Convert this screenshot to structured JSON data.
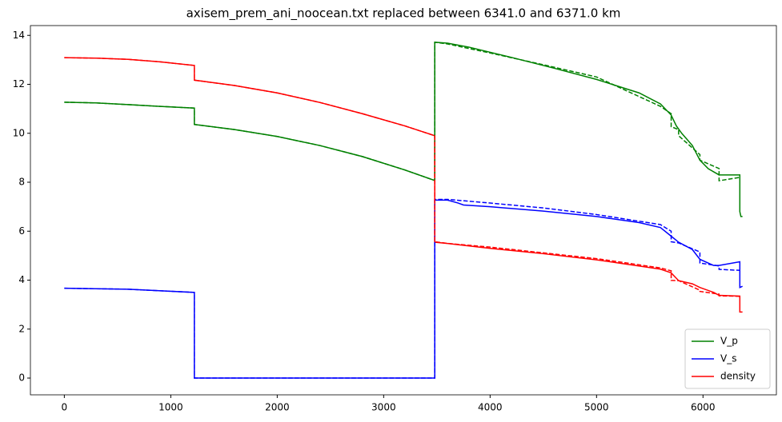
{
  "chart_data": {
    "type": "line",
    "title": "axisem_prem_ani_noocean.txt replaced between 6341.0 and 6371.0 km",
    "xlim": [
      -318.55,
      6689.55
    ],
    "xticks": [
      0,
      1000,
      2000,
      3000,
      4000,
      5000,
      6000
    ],
    "ylim": [
      -0.685,
      14.4
    ],
    "yticks": [
      0,
      2,
      4,
      6,
      8,
      10,
      12,
      14
    ],
    "legend": "lower right",
    "series": [
      {
        "name": "V_p",
        "color": "#008000",
        "style": "solid",
        "x": [
          0,
          300,
          600,
          900,
          1221.5,
          1221.5,
          1600,
          2000,
          2400,
          2800,
          3200,
          3480,
          3480,
          3600,
          3800,
          4200,
          4600,
          5000,
          5400,
          5600,
          5700,
          5750,
          5800,
          5900,
          5971,
          6050,
          6151,
          6346,
          6346,
          6356,
          6371
        ],
        "values": [
          11.27,
          11.24,
          11.17,
          11.1,
          11.03,
          10.36,
          10.15,
          9.87,
          9.5,
          9.05,
          8.5,
          8.07,
          13.72,
          13.68,
          13.52,
          13.1,
          12.66,
          12.2,
          11.65,
          11.2,
          10.75,
          10.3,
          10.0,
          9.5,
          8.9,
          8.55,
          8.3,
          8.3,
          6.8,
          6.6,
          6.6
        ]
      },
      {
        "name": "V_s",
        "color": "#0000ff",
        "style": "solid",
        "x": [
          0,
          600,
          1221.5,
          1221.5,
          3480,
          3480,
          3600,
          3700,
          3750,
          4000,
          4500,
          5000,
          5400,
          5600,
          5700,
          5771,
          5900,
          5971,
          6100,
          6151,
          6346,
          6346,
          6371
        ],
        "values": [
          3.67,
          3.63,
          3.5,
          0,
          0,
          7.27,
          7.27,
          7.15,
          7.07,
          7.0,
          6.82,
          6.6,
          6.35,
          6.15,
          5.8,
          5.55,
          5.25,
          4.85,
          4.6,
          4.6,
          4.75,
          3.7,
          3.75
        ]
      },
      {
        "name": "density",
        "color": "#ff0000",
        "style": "solid",
        "x": [
          0,
          300,
          600,
          900,
          1221.5,
          1221.5,
          1600,
          2000,
          2400,
          2800,
          3200,
          3480,
          3480,
          3600,
          4000,
          4500,
          5000,
          5600,
          5700,
          5771,
          5900,
          5971,
          6100,
          6151,
          6346,
          6346,
          6371
        ],
        "values": [
          13.09,
          13.07,
          13.02,
          12.92,
          12.77,
          12.17,
          11.95,
          11.65,
          11.26,
          10.8,
          10.3,
          9.9,
          5.55,
          5.5,
          5.3,
          5.08,
          4.83,
          4.45,
          4.3,
          3.98,
          3.85,
          3.7,
          3.5,
          3.38,
          3.35,
          2.7,
          2.7
        ]
      },
      {
        "color": "#008000",
        "style": "dashed",
        "x": [
          0,
          300,
          600,
          900,
          1221.5,
          1221.5,
          1600,
          2000,
          2400,
          2800,
          3200,
          3480,
          3480,
          3600,
          4000,
          4500,
          5000,
          5600,
          5701,
          5701,
          5771,
          5771,
          5971,
          5971,
          6151,
          6151,
          6346
        ],
        "values": [
          11.27,
          11.24,
          11.17,
          11.1,
          11.03,
          10.36,
          10.15,
          9.87,
          9.5,
          9.05,
          8.5,
          8.07,
          13.72,
          13.65,
          13.28,
          12.8,
          12.3,
          11.1,
          10.8,
          10.27,
          10.15,
          9.9,
          9.13,
          8.9,
          8.56,
          8.06,
          8.2
        ]
      },
      {
        "color": "#0000ff",
        "style": "dashed",
        "x": [
          0,
          600,
          1221.5,
          1221.5,
          3480,
          3480,
          3600,
          4000,
          4500,
          5000,
          5600,
          5701,
          5701,
          5771,
          5971,
          5971,
          6151,
          6151,
          6346
        ],
        "values": [
          3.67,
          3.63,
          3.5,
          0,
          0,
          7.3,
          7.3,
          7.15,
          6.95,
          6.68,
          6.27,
          6.0,
          5.57,
          5.52,
          5.15,
          4.7,
          4.58,
          4.44,
          4.4
        ]
      },
      {
        "color": "#ff0000",
        "style": "dashed",
        "x": [
          0,
          300,
          600,
          900,
          1221.5,
          1221.5,
          1600,
          2000,
          2400,
          2800,
          3200,
          3480,
          3480,
          3600,
          4000,
          5000,
          5600,
          5701,
          5701,
          5771,
          5971,
          5971,
          6151,
          6151,
          6346
        ],
        "values": [
          13.09,
          13.07,
          13.02,
          12.92,
          12.77,
          12.17,
          11.95,
          11.65,
          11.26,
          10.8,
          10.3,
          9.9,
          5.57,
          5.5,
          5.35,
          4.88,
          4.5,
          4.38,
          3.99,
          3.98,
          3.59,
          3.54,
          3.43,
          3.36,
          3.34
        ]
      }
    ]
  }
}
